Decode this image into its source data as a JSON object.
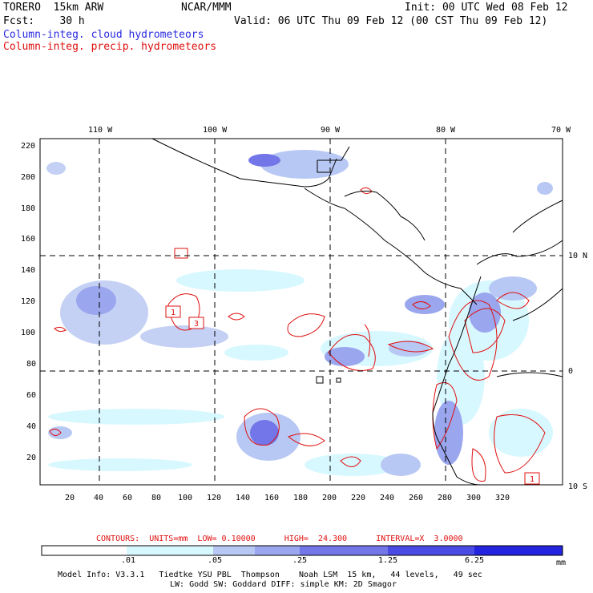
{
  "header": {
    "model": "TORERO  15km ARW",
    "org": "NCAR/MMM",
    "init": "Init: 00 UTC Wed 08 Feb 12",
    "fcst": "Fcst:    30 h",
    "valid": "Valid: 06 UTC Thu 09 Feb 12 (00 CST Thu 09 Feb 12)",
    "legend_cloud": "Column-integ. cloud hydrometeors",
    "legend_precip": "Column-integ. precip. hydrometeors"
  },
  "map": {
    "lon_labels": [
      "110 W",
      "100 W",
      "90 W",
      "80 W",
      "70 W"
    ],
    "lat_labels": [
      "10 N",
      "0",
      "10 S"
    ],
    "y_ticks": [
      "220",
      "200",
      "180",
      "160",
      "140",
      "120",
      "100",
      "80",
      "60",
      "40",
      "20"
    ],
    "x_ticks": [
      "20",
      "40",
      "60",
      "80",
      "100",
      "120",
      "140",
      "160",
      "180",
      "200",
      "220",
      "240",
      "260",
      "280",
      "300",
      "320"
    ],
    "contour_labels": [
      "1",
      "3",
      "1"
    ]
  },
  "contours_info": {
    "text": "CONTOURS:  UNITS=mm  LOW= 0.10000      HIGH=  24.300      INTERVAL=X  3.0000"
  },
  "colorbar": {
    "labels": [
      ".01",
      ".05",
      ".25",
      "1.25",
      "6.25"
    ],
    "units": "mm",
    "colors": [
      "#ffffff",
      "#d8f8ff",
      "#b8c8f4",
      "#9aa6ee",
      "#7276e8",
      "#4a4ae4",
      "#2424e0"
    ]
  },
  "footer": {
    "line1": "Model Info: V3.3.1   Tiedtke YSU PBL  Thompson    Noah LSM  15 km,   44 levels,   49 sec",
    "line2": "LW: Godd SW: Goddard DIFF: simple KM: 2D Smagor"
  }
}
